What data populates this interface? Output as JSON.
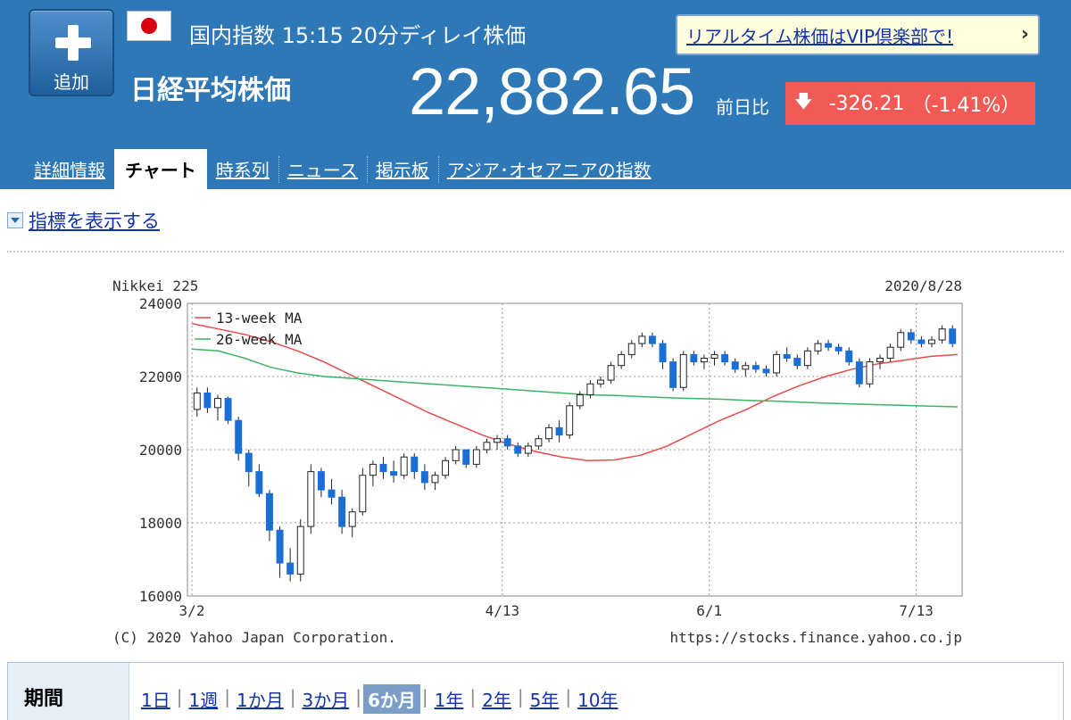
{
  "header": {
    "add_label": "追加",
    "market_info": "国内指数  15:15 20分ディレイ株価",
    "index_name": "日経平均株価",
    "price": "22,882.65",
    "change_label": "前日比",
    "change_value": "-326.21",
    "change_pct": "（-1.41%）",
    "vip_text": "リアルタイム株価はVIP倶楽部で!",
    "colors": {
      "bar": "#2e78b8",
      "down": "#f25a56"
    }
  },
  "tabs": [
    {
      "label": "詳細情報",
      "active": false
    },
    {
      "label": "チャート",
      "active": true
    },
    {
      "label": "時系列",
      "active": false
    },
    {
      "label": "ニュース",
      "active": false
    },
    {
      "label": "掲示板",
      "active": false
    },
    {
      "label": "アジア･オセアニアの指数",
      "active": false
    }
  ],
  "indicator_toggle": "指標を表示する",
  "chart_data": {
    "type": "line",
    "title": "Nikkei 225",
    "date": "2020/8/28",
    "copyright": "(C) 2020 Yahoo Japan Corporation.",
    "source": "https://stocks.finance.yahoo.co.jp",
    "ylim": [
      16000,
      24000
    ],
    "yticks": [
      16000,
      18000,
      20000,
      22000,
      24000
    ],
    "xticks": [
      "3/2",
      "4/13",
      "6/1",
      "7/13"
    ],
    "grid": true,
    "legend_position": "top-left",
    "series": [
      {
        "name": "13-week MA",
        "color": "#e84a4a",
        "values": [
          23450,
          23300,
          23150,
          22950,
          22700,
          22400,
          22050,
          21700,
          21350,
          21000,
          20700,
          20400,
          20150,
          19950,
          19800,
          19700,
          19720,
          19850,
          20100,
          20450,
          20800,
          21100,
          21450,
          21750,
          22000,
          22200,
          22350,
          22450,
          22550,
          22600
        ]
      },
      {
        "name": "26-week MA",
        "color": "#3cb464",
        "values": [
          22750,
          22700,
          22500,
          22250,
          22100,
          22000,
          21950,
          21900,
          21850,
          21800,
          21750,
          21700,
          21650,
          21600,
          21550,
          21500,
          21480,
          21450,
          21420,
          21400,
          21380,
          21350,
          21330,
          21300,
          21270,
          21250,
          21230,
          21210,
          21190,
          21170
        ]
      }
    ],
    "candles": [
      [
        21100,
        21700,
        20900,
        21550
      ],
      [
        21550,
        21700,
        21000,
        21150
      ],
      [
        21150,
        21500,
        20800,
        21400
      ],
      [
        21400,
        21450,
        20700,
        20800
      ],
      [
        20800,
        20900,
        19700,
        19900
      ],
      [
        19900,
        20000,
        19000,
        19400
      ],
      [
        19400,
        19600,
        18700,
        18800
      ],
      [
        18800,
        18900,
        17500,
        17800
      ],
      [
        17800,
        17900,
        16500,
        16900
      ],
      [
        16900,
        17300,
        16400,
        16600
      ],
      [
        16600,
        18100,
        16400,
        17900
      ],
      [
        17900,
        19600,
        17700,
        19400
      ],
      [
        19400,
        19500,
        18700,
        18900
      ],
      [
        18900,
        19200,
        18500,
        18700
      ],
      [
        18700,
        18900,
        17700,
        17900
      ],
      [
        17900,
        18400,
        17600,
        18300
      ],
      [
        18300,
        19500,
        18200,
        19300
      ],
      [
        19300,
        19700,
        19000,
        19600
      ],
      [
        19600,
        19800,
        19200,
        19400
      ],
      [
        19400,
        19700,
        19100,
        19300
      ],
      [
        19300,
        19900,
        19200,
        19800
      ],
      [
        19800,
        19900,
        19200,
        19400
      ],
      [
        19400,
        19600,
        18900,
        19100
      ],
      [
        19100,
        19400,
        18900,
        19300
      ],
      [
        19300,
        19800,
        19200,
        19700
      ],
      [
        19700,
        20100,
        19600,
        20000
      ],
      [
        20000,
        20000,
        19500,
        19600
      ],
      [
        19600,
        20100,
        19500,
        20000
      ],
      [
        20000,
        20300,
        19900,
        20200
      ],
      [
        20200,
        20400,
        20000,
        20300
      ],
      [
        20300,
        20400,
        20000,
        20100
      ],
      [
        20100,
        20200,
        19800,
        19900
      ],
      [
        19900,
        20200,
        19800,
        20100
      ],
      [
        20100,
        20400,
        20000,
        20300
      ],
      [
        20300,
        20700,
        20200,
        20600
      ],
      [
        20600,
        20800,
        20200,
        20400
      ],
      [
        20400,
        21300,
        20300,
        21200
      ],
      [
        21200,
        21600,
        21100,
        21500
      ],
      [
        21500,
        21900,
        21400,
        21800
      ],
      [
        21800,
        22000,
        21700,
        21900
      ],
      [
        21900,
        22400,
        21800,
        22300
      ],
      [
        22300,
        22700,
        22200,
        22600
      ],
      [
        22600,
        23000,
        22500,
        22900
      ],
      [
        22900,
        23200,
        22800,
        23100
      ],
      [
        23100,
        23200,
        22800,
        22900
      ],
      [
        22900,
        23000,
        22200,
        22400
      ],
      [
        22400,
        22500,
        21600,
        21700
      ],
      [
        21700,
        22700,
        21600,
        22600
      ],
      [
        22600,
        22700,
        22300,
        22400
      ],
      [
        22400,
        22600,
        22200,
        22500
      ],
      [
        22500,
        22700,
        22300,
        22600
      ],
      [
        22600,
        22700,
        22300,
        22400
      ],
      [
        22400,
        22500,
        22100,
        22200
      ],
      [
        22200,
        22400,
        22000,
        22300
      ],
      [
        22300,
        22400,
        22100,
        22200
      ],
      [
        22200,
        22300,
        22000,
        22100
      ],
      [
        22100,
        22700,
        22000,
        22600
      ],
      [
        22600,
        22800,
        22400,
        22500
      ],
      [
        22500,
        22600,
        22200,
        22300
      ],
      [
        22300,
        22800,
        22200,
        22700
      ],
      [
        22700,
        23000,
        22600,
        22900
      ],
      [
        22900,
        23000,
        22700,
        22800
      ],
      [
        22800,
        22900,
        22600,
        22700
      ],
      [
        22700,
        22800,
        22300,
        22400
      ],
      [
        22400,
        22500,
        21700,
        21800
      ],
      [
        21800,
        22500,
        21700,
        22400
      ],
      [
        22400,
        22600,
        22200,
        22500
      ],
      [
        22500,
        22900,
        22400,
        22800
      ],
      [
        22800,
        23300,
        22700,
        23200
      ],
      [
        23200,
        23300,
        22900,
        23000
      ],
      [
        23000,
        23100,
        22800,
        22900
      ],
      [
        22900,
        23100,
        22800,
        23000
      ],
      [
        23000,
        23400,
        22900,
        23300
      ],
      [
        23300,
        23400,
        22800,
        22900
      ]
    ]
  },
  "period": {
    "label": "期間",
    "options": [
      {
        "label": "1日",
        "active": false
      },
      {
        "label": "1週",
        "active": false
      },
      {
        "label": "1か月",
        "active": false
      },
      {
        "label": "3か月",
        "active": false
      },
      {
        "label": "6か月",
        "active": true
      },
      {
        "label": "1年",
        "active": false
      },
      {
        "label": "2年",
        "active": false
      },
      {
        "label": "5年",
        "active": false
      },
      {
        "label": "10年",
        "active": false
      }
    ]
  }
}
